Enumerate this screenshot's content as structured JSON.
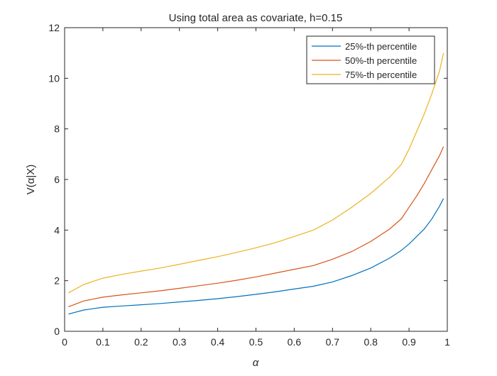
{
  "chart_data": {
    "type": "line",
    "title": "Using total area as covariate, h=0.15",
    "xlabel": "α",
    "ylabel": "V(α|X)",
    "xlim": [
      0,
      1
    ],
    "ylim": [
      0,
      12
    ],
    "xticks": [
      0,
      0.1,
      0.2,
      0.3,
      0.4,
      0.5,
      0.6,
      0.7,
      0.8,
      0.9,
      1
    ],
    "xtick_labels": [
      "0",
      "0.1",
      "0.2",
      "0.3",
      "0.4",
      "0.5",
      "0.6",
      "0.7",
      "0.8",
      "0.9",
      "1"
    ],
    "yticks": [
      0,
      2,
      4,
      6,
      8,
      10,
      12
    ],
    "ytick_labels": [
      "0",
      "2",
      "4",
      "6",
      "8",
      "10",
      "12"
    ],
    "grid": false,
    "legend_position": "top-right",
    "x": [
      0.01,
      0.05,
      0.1,
      0.15,
      0.2,
      0.25,
      0.3,
      0.35,
      0.4,
      0.45,
      0.5,
      0.55,
      0.6,
      0.65,
      0.7,
      0.75,
      0.8,
      0.85,
      0.88,
      0.9,
      0.92,
      0.94,
      0.96,
      0.98,
      0.99
    ],
    "series": [
      {
        "name": "25%-th percentile",
        "color": "#0072BD",
        "values": [
          0.68,
          0.84,
          0.95,
          1.0,
          1.05,
          1.1,
          1.16,
          1.22,
          1.29,
          1.37,
          1.46,
          1.56,
          1.67,
          1.78,
          1.95,
          2.2,
          2.5,
          2.9,
          3.2,
          3.45,
          3.75,
          4.05,
          4.45,
          4.95,
          5.25
        ]
      },
      {
        "name": "50%-th percentile",
        "color": "#D95319",
        "values": [
          0.97,
          1.2,
          1.35,
          1.44,
          1.52,
          1.6,
          1.7,
          1.8,
          1.9,
          2.02,
          2.15,
          2.3,
          2.45,
          2.6,
          2.85,
          3.15,
          3.55,
          4.05,
          4.45,
          4.9,
          5.35,
          5.85,
          6.4,
          6.95,
          7.3
        ]
      },
      {
        "name": "75%-th percentile",
        "color": "#EDB120",
        "values": [
          1.52,
          1.85,
          2.1,
          2.25,
          2.38,
          2.5,
          2.65,
          2.8,
          2.95,
          3.12,
          3.3,
          3.5,
          3.75,
          4.0,
          4.4,
          4.9,
          5.45,
          6.1,
          6.6,
          7.2,
          7.9,
          8.6,
          9.4,
          10.3,
          11.0
        ]
      }
    ]
  }
}
